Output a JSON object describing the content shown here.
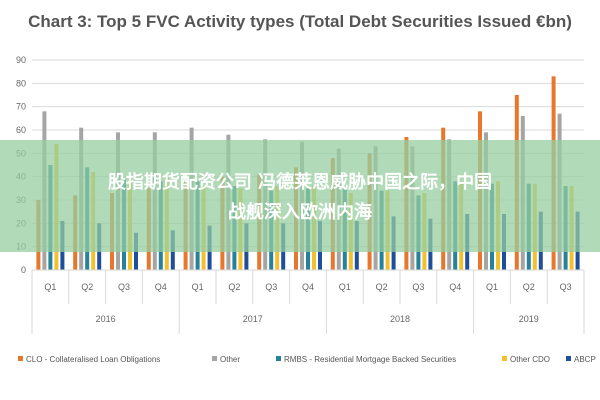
{
  "chart_data": {
    "type": "bar",
    "title": "Chart 3: Top 5 FVC Activity types (Total Debt Securities Issued €bn)",
    "ylim": [
      0,
      90
    ],
    "yticks": [
      "0",
      "10",
      "20",
      "30",
      "40",
      "50",
      "60",
      "70",
      "80",
      "90"
    ],
    "grid": true,
    "legend_placement": "bottom",
    "categories": [
      "Q1",
      "Q2",
      "Q3",
      "Q4",
      "Q1",
      "Q2",
      "Q3",
      "Q4",
      "Q1",
      "Q2",
      "Q3",
      "Q4",
      "Q1",
      "Q2",
      "Q3"
    ],
    "year_groups": [
      {
        "label": "2016",
        "count": 4
      },
      {
        "label": "2017",
        "count": 4
      },
      {
        "label": "2018",
        "count": 4
      },
      {
        "label": "2019",
        "count": 3
      }
    ],
    "series": [
      {
        "name": "CLO - Collateralised Loan Obligations",
        "color": "#e8772e",
        "values": [
          30,
          32,
          33,
          35,
          38,
          40,
          41,
          44,
          48,
          50,
          57,
          61,
          68,
          75,
          83
        ]
      },
      {
        "name": "Other",
        "color": "#a5a5a5",
        "values": [
          68,
          61,
          59,
          59,
          61,
          58,
          56,
          55,
          52,
          53,
          53,
          56,
          59,
          66,
          67
        ]
      },
      {
        "name": "RMBS - Residential Mortgage Backed Securities",
        "color": "#26819b",
        "values": [
          45,
          44,
          39,
          38,
          38,
          36,
          34,
          35,
          35,
          34,
          32,
          38,
          37,
          37,
          36
        ]
      },
      {
        "name": "Other CDO",
        "color": "#f2c12e",
        "values": [
          54,
          42,
          39,
          40,
          36,
          35,
          36,
          36,
          33,
          34,
          33,
          38,
          38,
          37,
          36
        ]
      },
      {
        "name": "ABCP",
        "color": "#1f4e9b",
        "values": [
          21,
          20,
          16,
          17,
          19,
          20,
          20,
          21,
          21,
          23,
          22,
          24,
          24,
          25,
          25
        ]
      }
    ]
  },
  "overlay": {
    "line1": "股指期货配资公司 冯德莱恩威胁中国之际，中国",
    "line2": "战舰深入欧洲内海"
  }
}
